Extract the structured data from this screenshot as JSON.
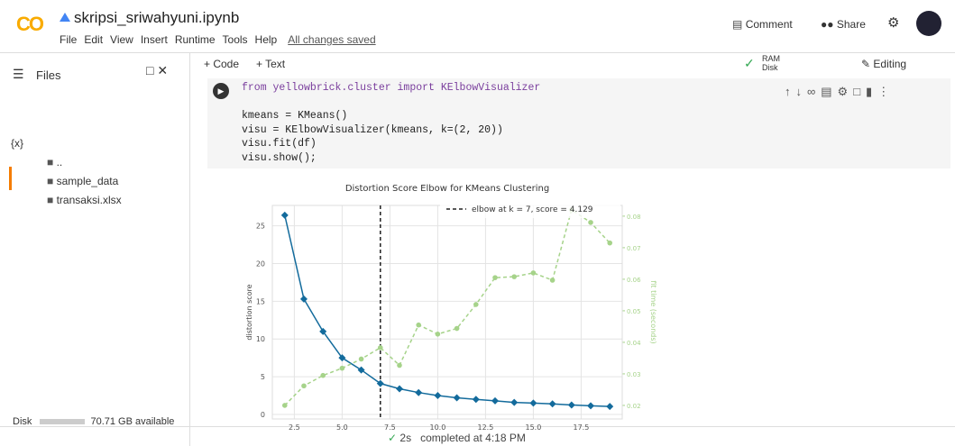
{
  "header": {
    "logo": "CO",
    "title": "skripsi_sriwahyuni.ipynb",
    "menu": [
      "File",
      "Edit",
      "View",
      "Insert",
      "Runtime",
      "Tools",
      "Help"
    ],
    "save_status": "All changes saved",
    "comment": "Comment",
    "share": "Share"
  },
  "toolbar": {
    "add_code": "+ Code",
    "add_text": "+ Text",
    "ram": "RAM",
    "disk": "Disk",
    "editing": "Editing"
  },
  "sidebar": {
    "title": "Files",
    "variables": "{x}",
    "items": [
      "..",
      "sample_data",
      "transaksi.xlsx"
    ],
    "disk": "Disk",
    "available": "70.71 GB available"
  },
  "cell": {
    "code": [
      "from yellowbrick.cluster import KElbowVisualizer",
      "",
      "kmeans = KMeans()",
      "visu = KElbowVisualizer(kmeans, k=(2, 20))",
      "visu.fit(df)",
      "visu.show();"
    ]
  },
  "status": {
    "duration": "2s",
    "completed": "completed at 4:18 PM"
  },
  "chart_data": {
    "type": "line",
    "title": "Distortion Score Elbow for KMeans Clustering",
    "ylabel": "distortion score",
    "y2label": "fit time (seconds)",
    "x": [
      2,
      3,
      4,
      5,
      6,
      7,
      8,
      9,
      10,
      11,
      12,
      13,
      14,
      15,
      16,
      17,
      18,
      19
    ],
    "series": [
      {
        "color": "#136b9c",
        "values": [
          26.4,
          15.3,
          11.0,
          7.5,
          5.9,
          4.1,
          3.4,
          2.9,
          2.5,
          2.2,
          2.0,
          1.8,
          1.6,
          1.5,
          1.4,
          1.25,
          1.15,
          1.05
        ]
      },
      {
        "color": "#a6d38a",
        "axis": "y2",
        "values": [
          0.02,
          0.0262,
          0.0295,
          0.0318,
          0.0347,
          0.0383,
          0.0327,
          0.0455,
          0.0426,
          0.0444,
          0.052,
          0.0605,
          0.0608,
          0.062,
          0.0597,
          0.082,
          0.078,
          0.0715
        ]
      }
    ],
    "elbow": {
      "k": 7,
      "label": "elbow at k = 7, score = 4.129"
    },
    "xlim": [
      1.35,
      19.65
    ],
    "xticks": [
      {
        "value": 2.5,
        "label": "2.5"
      },
      {
        "value": 5,
        "label": "5.0"
      },
      {
        "value": 7.5,
        "label": "7.5"
      },
      {
        "value": 10,
        "label": "10.0"
      },
      {
        "value": 12.5,
        "label": "12.5"
      },
      {
        "value": 15,
        "label": "15.0"
      },
      {
        "value": 17.5,
        "label": "17.5"
      }
    ],
    "ylim": [
      -0.6,
      27.7
    ],
    "yticks": [
      0,
      5,
      10,
      15,
      20,
      25
    ],
    "y2lim": [
      0.0157,
      0.0834
    ],
    "y2ticks": [
      0.02,
      0.03,
      0.04,
      0.05,
      0.06,
      0.07,
      0.08
    ],
    "grid": true
  }
}
